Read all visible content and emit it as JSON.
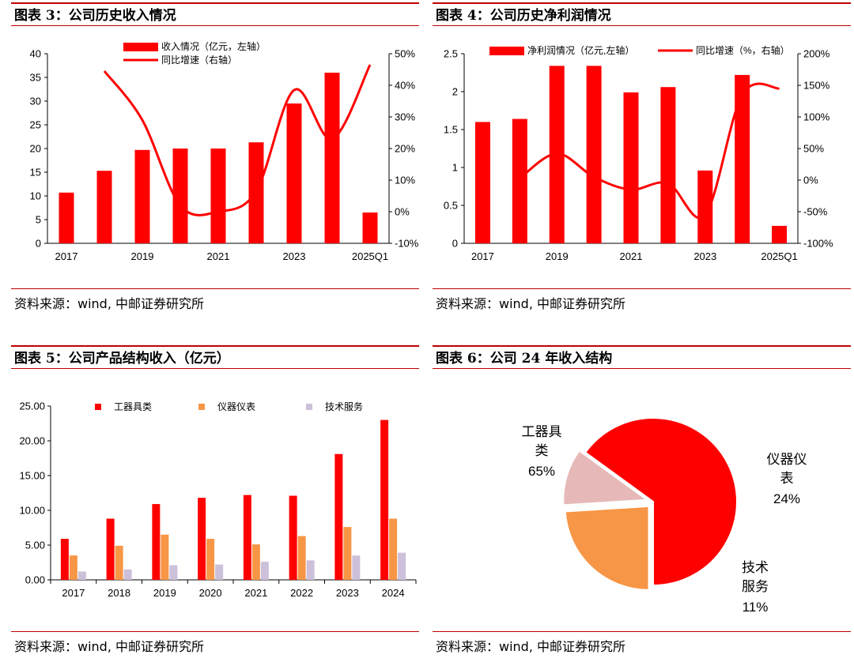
{
  "panels": {
    "p3": {
      "title": "图表 3：公司历史收入情况",
      "source": "资料来源：wind, 中邮证券研究所"
    },
    "p4": {
      "title": "图表 4：公司历史净利润情况",
      "source": "资料来源：wind, 中邮证券研究所"
    },
    "p5": {
      "title": "图表 5：公司产品结构收入（亿元）",
      "source": "资料来源：wind, 中邮证券研究所"
    },
    "p6": {
      "title": "图表 6：公司 24 年收入结构",
      "source": "资料来源：wind, 中邮证券研究所"
    }
  },
  "colors": {
    "red": "#ff0000",
    "orange": "#f79646",
    "lavender": "#ccc0da",
    "pink": "#e6b9b8",
    "rule": "#c00000"
  },
  "chart_data": [
    {
      "id": "revenue",
      "type": "bar+line",
      "x": [
        "2017",
        "2018",
        "2019",
        "2020",
        "2021",
        "2022",
        "2023",
        "2024",
        "2025Q1"
      ],
      "x_tick_labels": [
        "2017",
        "2019",
        "2021",
        "2023",
        "2025Q1"
      ],
      "series": [
        {
          "name": "收入情况（亿元，左轴）",
          "axis": "left",
          "kind": "bar",
          "values": [
            10.7,
            15.3,
            19.7,
            20.0,
            20.0,
            21.3,
            29.5,
            36.0,
            6.5
          ]
        },
        {
          "name": "同比增速（右轴）",
          "axis": "right",
          "kind": "line",
          "values": [
            null,
            0.445,
            0.29,
            0.02,
            0.0,
            0.065,
            0.385,
            0.23,
            0.465
          ]
        }
      ],
      "left_ylim": [
        0,
        40
      ],
      "left_ticks": [
        "0",
        "5",
        "10",
        "15",
        "20",
        "25",
        "30",
        "35",
        "40"
      ],
      "right_ylim": [
        -0.1,
        0.5
      ],
      "right_ticks": [
        "-10%",
        "0%",
        "10%",
        "20%",
        "30%",
        "40%",
        "50%"
      ]
    },
    {
      "id": "net_profit",
      "type": "bar+line",
      "x": [
        "2017",
        "2018",
        "2019",
        "2020",
        "2021",
        "2022",
        "2023",
        "2024",
        "2025Q1"
      ],
      "x_tick_labels": [
        "2017",
        "2019",
        "2021",
        "2023",
        "2025Q1"
      ],
      "series": [
        {
          "name": "净利润情况（亿元,左轴）",
          "axis": "left",
          "kind": "bar",
          "values": [
            1.6,
            1.64,
            2.34,
            2.34,
            1.99,
            2.06,
            0.96,
            2.22,
            0.23
          ]
        },
        {
          "name": "同比增速（%，右轴）",
          "axis": "right",
          "kind": "line",
          "values": [
            null,
            3,
            42,
            5,
            -15,
            -5,
            -55,
            135,
            145
          ]
        }
      ],
      "left_ylim": [
        0,
        2.5
      ],
      "left_ticks": [
        "0",
        "0.5",
        "1",
        "1.5",
        "2",
        "2.5"
      ],
      "right_ylim": [
        -100,
        200
      ],
      "right_ticks": [
        "-100%",
        "-50%",
        "0%",
        "50%",
        "100%",
        "150%",
        "200%"
      ]
    },
    {
      "id": "product_revenue",
      "type": "bar",
      "categories": [
        "2017",
        "2018",
        "2019",
        "2020",
        "2021",
        "2022",
        "2023",
        "2024"
      ],
      "series": [
        {
          "name": "工器具类",
          "values": [
            5.9,
            8.8,
            10.9,
            11.8,
            12.2,
            12.1,
            18.1,
            23.0
          ]
        },
        {
          "name": "仪器仪表",
          "values": [
            3.5,
            4.9,
            6.5,
            5.9,
            5.1,
            6.3,
            7.6,
            8.8
          ]
        },
        {
          "name": "技术服务",
          "values": [
            1.2,
            1.5,
            2.1,
            2.2,
            2.6,
            2.8,
            3.5,
            3.9
          ]
        }
      ],
      "ylim": [
        0,
        25
      ],
      "y_ticks": [
        "0.00",
        "5.00",
        "10.00",
        "15.00",
        "20.00",
        "25.00"
      ]
    },
    {
      "id": "revenue_mix_2024",
      "type": "pie",
      "slices": [
        {
          "name": "工器具类",
          "value": 65,
          "label": "65%",
          "name_lines": [
            "工器具",
            "类"
          ]
        },
        {
          "name": "仪器仪表",
          "value": 24,
          "label": "24%",
          "name_lines": [
            "仪器仪",
            "表"
          ]
        },
        {
          "name": "技术服务",
          "value": 11,
          "label": "11%",
          "name_lines": [
            "技术",
            "服务"
          ]
        }
      ]
    }
  ]
}
